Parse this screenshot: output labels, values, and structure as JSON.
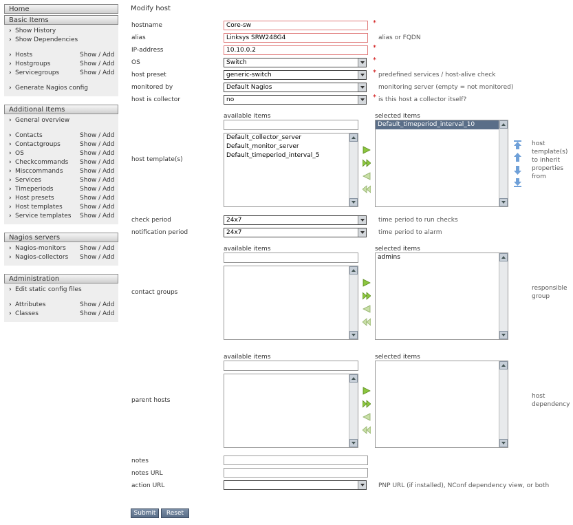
{
  "sidebar": {
    "home": "Home",
    "basic": {
      "title": "Basic Items",
      "history": "Show History",
      "dependencies": "Show Dependencies",
      "hosts": "Hosts",
      "hostgroups": "Hostgroups",
      "servicegroups": "Servicegroups",
      "generate": "Generate Nagios config"
    },
    "additional": {
      "title": "Additional Items",
      "overview": "General overview",
      "contacts": "Contacts",
      "contactgroups": "Contactgroups",
      "os": "OS",
      "checkcommands": "Checkcommands",
      "misccommands": "Misccommands",
      "services": "Services",
      "timeperiods": "Timeperiods",
      "host_presets": "Host presets",
      "host_templates": "Host templates",
      "service_templates": "Service templates"
    },
    "nagios": {
      "title": "Nagios servers",
      "monitors": "Nagios-monitors",
      "collectors": "Nagios-collectors"
    },
    "admin": {
      "title": "Administration",
      "static": "Edit static config files",
      "attributes": "Attributes",
      "classes": "Classes"
    },
    "show_add": "Show / Add"
  },
  "form": {
    "title": "Modify host",
    "hostname": {
      "label": "hostname",
      "value": "Core-sw"
    },
    "alias": {
      "label": "alias",
      "value": "Linksys SRW248G4",
      "hint": "alias or FQDN"
    },
    "ip": {
      "label": "IP-address",
      "value": "10.10.0.2"
    },
    "os": {
      "label": "OS",
      "value": "Switch"
    },
    "preset": {
      "label": "host preset",
      "value": "generic-switch",
      "hint": "predefined services / host-alive check"
    },
    "monitored": {
      "label": "monitored by",
      "value": "Default Nagios",
      "hint": "monitoring server (empty = not monitored)"
    },
    "collector": {
      "label": "host is collector",
      "value": "no",
      "hint": "is this host a collector itself?"
    },
    "required_mark": "*",
    "available_label": "available items",
    "selected_label": "selected items",
    "templates": {
      "label": "host template(s)",
      "available": [
        "Default_collector_server",
        "Default_monitor_server",
        "Default_timeperiod_interval_5"
      ],
      "selected": [
        "Default_timeperiod_interval_10"
      ],
      "note": "host template(s) to inherit properties from"
    },
    "check_period": {
      "label": "check period",
      "value": "24x7",
      "hint": "time period to run checks"
    },
    "notification_period": {
      "label": "notification period",
      "value": "24x7",
      "hint": "time period to alarm"
    },
    "contact_groups": {
      "label": "contact groups",
      "selected": [
        "admins"
      ],
      "note": "responsible group"
    },
    "parents": {
      "label": "parent hosts",
      "note": "host dependency"
    },
    "notes": {
      "label": "notes",
      "value": ""
    },
    "notes_url": {
      "label": "notes URL",
      "value": ""
    },
    "action_url": {
      "label": "action URL",
      "value": "",
      "hint": "PNP URL (if installed), NConf dependency view, or both"
    },
    "submit": "Submit",
    "reset": "Reset"
  }
}
